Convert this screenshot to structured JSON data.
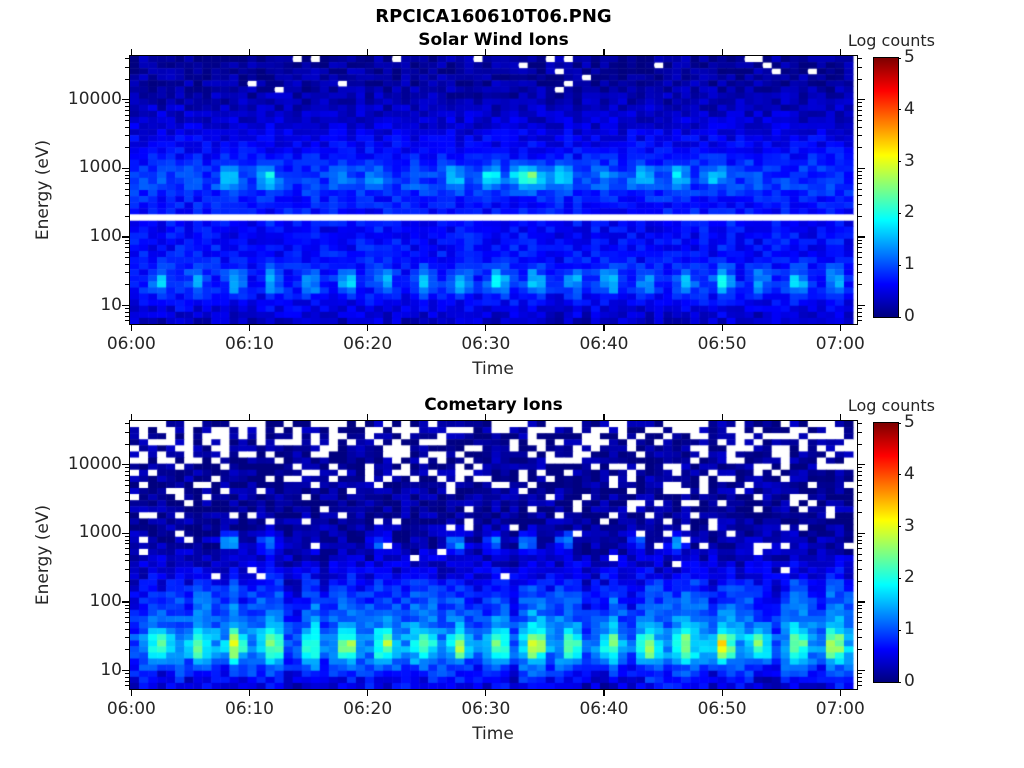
{
  "title": "RPCICA160610T06.PNG",
  "colorbar": {
    "label": "Log counts",
    "tick_labels": [
      "5",
      "4",
      "3",
      "2",
      "1",
      "0"
    ],
    "min": 0,
    "max": 5,
    "colormap": "jet",
    "colormap_hex": [
      "#000080",
      "#0000ff",
      "#00ffff",
      "#ffff00",
      "#ff0000",
      "#800000"
    ]
  },
  "chart_data": [
    {
      "type": "heatmap",
      "title": "Solar Wind Ions",
      "xlabel": "Time",
      "ylabel": "Energy (eV)",
      "value_label": "Log counts",
      "x_tick_labels": [
        "06:00",
        "06:10",
        "06:20",
        "06:30",
        "06:40",
        "06:50",
        "07:00"
      ],
      "x_tick_minutes": [
        360,
        370,
        380,
        390,
        400,
        410,
        420
      ],
      "time_range_min": [
        359.8,
        421.5
      ],
      "y_tick_labels": [
        "10",
        "100",
        "1000",
        "10000"
      ],
      "y_tick_values": [
        10,
        100,
        1000,
        10000
      ],
      "energy_range_ev": [
        5.2,
        45000
      ],
      "value_range": [
        0,
        5
      ],
      "grid": {
        "cols": 80,
        "rows": 44,
        "seed": 7,
        "stripe_seed": 21
      },
      "background_profile": [
        [
          0.72,
          0.3
        ],
        [
          1.0,
          0.55
        ],
        [
          1.25,
          0.72
        ],
        [
          1.6,
          0.7
        ],
        [
          2.1,
          0.62
        ],
        [
          2.5,
          0.72
        ],
        [
          2.75,
          0.88
        ],
        [
          3.0,
          0.82
        ],
        [
          3.3,
          0.62
        ],
        [
          3.6,
          0.45
        ],
        [
          3.9,
          0.32
        ],
        [
          4.1,
          0.22
        ],
        [
          4.3,
          0.16
        ],
        [
          4.65,
          0.13
        ]
      ],
      "noise_amplitude": 0.22,
      "column_stripe": {
        "amplitude": 0.06,
        "max_log10e": 2.3
      },
      "low_energy_spots": {
        "energy_ev": 22,
        "sigma_min": 0.55,
        "sigma_log10e": 0.13,
        "times_min": [
          362.4,
          365.6,
          368.8,
          372.0,
          375.2,
          378.4,
          381.6,
          384.8,
          388.0,
          391.2,
          394.4,
          397.6,
          400.8,
          404.0,
          407.2,
          410.4,
          413.6,
          416.8,
          420.0
        ],
        "peak_log_counts": [
          1.6,
          1.5,
          1.7,
          1.5,
          1.6,
          1.8,
          1.5,
          1.7,
          1.6,
          1.8,
          1.7,
          1.6,
          1.8,
          1.6,
          1.7,
          1.8,
          1.5,
          1.7,
          1.6
        ]
      },
      "ion_beams": {
        "energy_ev": 750,
        "sigma_min": 0.6,
        "sigma_log10e": 0.11,
        "events": [
          [
            362.2,
            1.1,
            1
          ],
          [
            365.0,
            1.2,
            1
          ],
          [
            368.3,
            1.9,
            1
          ],
          [
            371.5,
            2.0,
            1
          ],
          [
            377.8,
            1.5,
            1
          ],
          [
            380.7,
            1.4,
            1
          ],
          [
            384.2,
            1.1,
            1
          ],
          [
            387.4,
            1.8,
            1
          ],
          [
            390.6,
            1.9,
            1
          ],
          [
            393.8,
            2.5,
            1.6
          ],
          [
            396.7,
            1.9,
            1
          ],
          [
            400.3,
            1.4,
            1
          ],
          [
            403.5,
            1.8,
            1
          ],
          [
            406.6,
            1.8,
            1
          ],
          [
            409.8,
            1.6,
            1
          ],
          [
            413.0,
            1.1,
            1
          ]
        ]
      },
      "spot_tails": {
        "amplitude": 0,
        "center_log10e": 1.8,
        "sigma_log10e": 0.5,
        "sigma_min": 0.9
      },
      "missing_data": {
        "style": "dash",
        "line_ev": 200,
        "profile": [
          [
            0.7,
            0
          ],
          [
            4.0,
            0
          ],
          [
            4.15,
            0.015
          ],
          [
            4.35,
            0.04
          ],
          [
            4.65,
            0.05
          ]
        ]
      }
    },
    {
      "type": "heatmap",
      "title": "Cometary Ions",
      "xlabel": "Time",
      "ylabel": "Energy (eV)",
      "value_label": "Log counts",
      "x_tick_labels": [
        "06:00",
        "06:10",
        "06:20",
        "06:30",
        "06:40",
        "06:50",
        "07:00"
      ],
      "x_tick_minutes": [
        360,
        370,
        380,
        390,
        400,
        410,
        420
      ],
      "time_range_min": [
        359.8,
        421.5
      ],
      "y_tick_labels": [
        "10",
        "100",
        "1000",
        "10000"
      ],
      "y_tick_values": [
        10,
        100,
        1000,
        10000
      ],
      "energy_range_ev": [
        5.2,
        45000
      ],
      "value_range": [
        0,
        5
      ],
      "grid": {
        "cols": 80,
        "rows": 44,
        "seed": 13,
        "stripe_seed": 33
      },
      "background_profile": [
        [
          0.72,
          0.35
        ],
        [
          1.05,
          0.75
        ],
        [
          1.3,
          1.05
        ],
        [
          1.45,
          0.95
        ],
        [
          1.7,
          0.7
        ],
        [
          2.0,
          0.52
        ],
        [
          2.3,
          0.38
        ],
        [
          2.6,
          0.26
        ],
        [
          2.9,
          0.16
        ],
        [
          3.2,
          0.12
        ],
        [
          4.65,
          0.09
        ]
      ],
      "noise_amplitude": 0.28,
      "column_stripe": {
        "amplitude": 0.22,
        "max_log10e": 2.3
      },
      "low_energy_spots": {
        "energy_ev": 22,
        "sigma_min": 0.55,
        "sigma_log10e": 0.15,
        "times_min": [
          362.4,
          365.6,
          368.8,
          372.0,
          375.2,
          378.4,
          381.6,
          384.8,
          388.0,
          391.2,
          394.4,
          397.6,
          400.8,
          404.0,
          407.2,
          410.4,
          413.6,
          416.8,
          420.0
        ],
        "peak_log_counts": [
          2.3,
          2.1,
          2.5,
          2.2,
          2.1,
          2.3,
          2.4,
          2.2,
          2.3,
          2.2,
          2.5,
          2.3,
          2.2,
          2.3,
          2.2,
          2.9,
          2.3,
          2.2,
          2.4
        ]
      },
      "ion_beams": {
        "energy_ev": 750,
        "sigma_min": 0.5,
        "sigma_log10e": 0.09,
        "events": [
          [
            368.3,
            1.5,
            1
          ],
          [
            371.5,
            1.5,
            1
          ],
          [
            381.0,
            1.1,
            1
          ],
          [
            387.7,
            1.5,
            1
          ],
          [
            390.8,
            1.5,
            1
          ],
          [
            393.8,
            1.6,
            1
          ],
          [
            397.0,
            1.5,
            1
          ],
          [
            403.0,
            1.1,
            1
          ],
          [
            406.5,
            1.4,
            1
          ]
        ]
      },
      "spot_tails": {
        "amplitude": 0.55,
        "center_log10e": 1.8,
        "sigma_log10e": 0.5,
        "sigma_min": 0.9
      },
      "missing_data": {
        "style": "cell",
        "line_ev": null,
        "profile": [
          [
            0.7,
            0
          ],
          [
            2.3,
            0
          ],
          [
            2.45,
            0.02
          ],
          [
            2.7,
            0.05
          ],
          [
            3.0,
            0.07
          ],
          [
            3.4,
            0.1
          ],
          [
            3.7,
            0.14
          ],
          [
            4.0,
            0.22
          ],
          [
            4.25,
            0.3
          ],
          [
            4.45,
            0.42
          ],
          [
            4.65,
            0.5
          ]
        ]
      }
    }
  ]
}
